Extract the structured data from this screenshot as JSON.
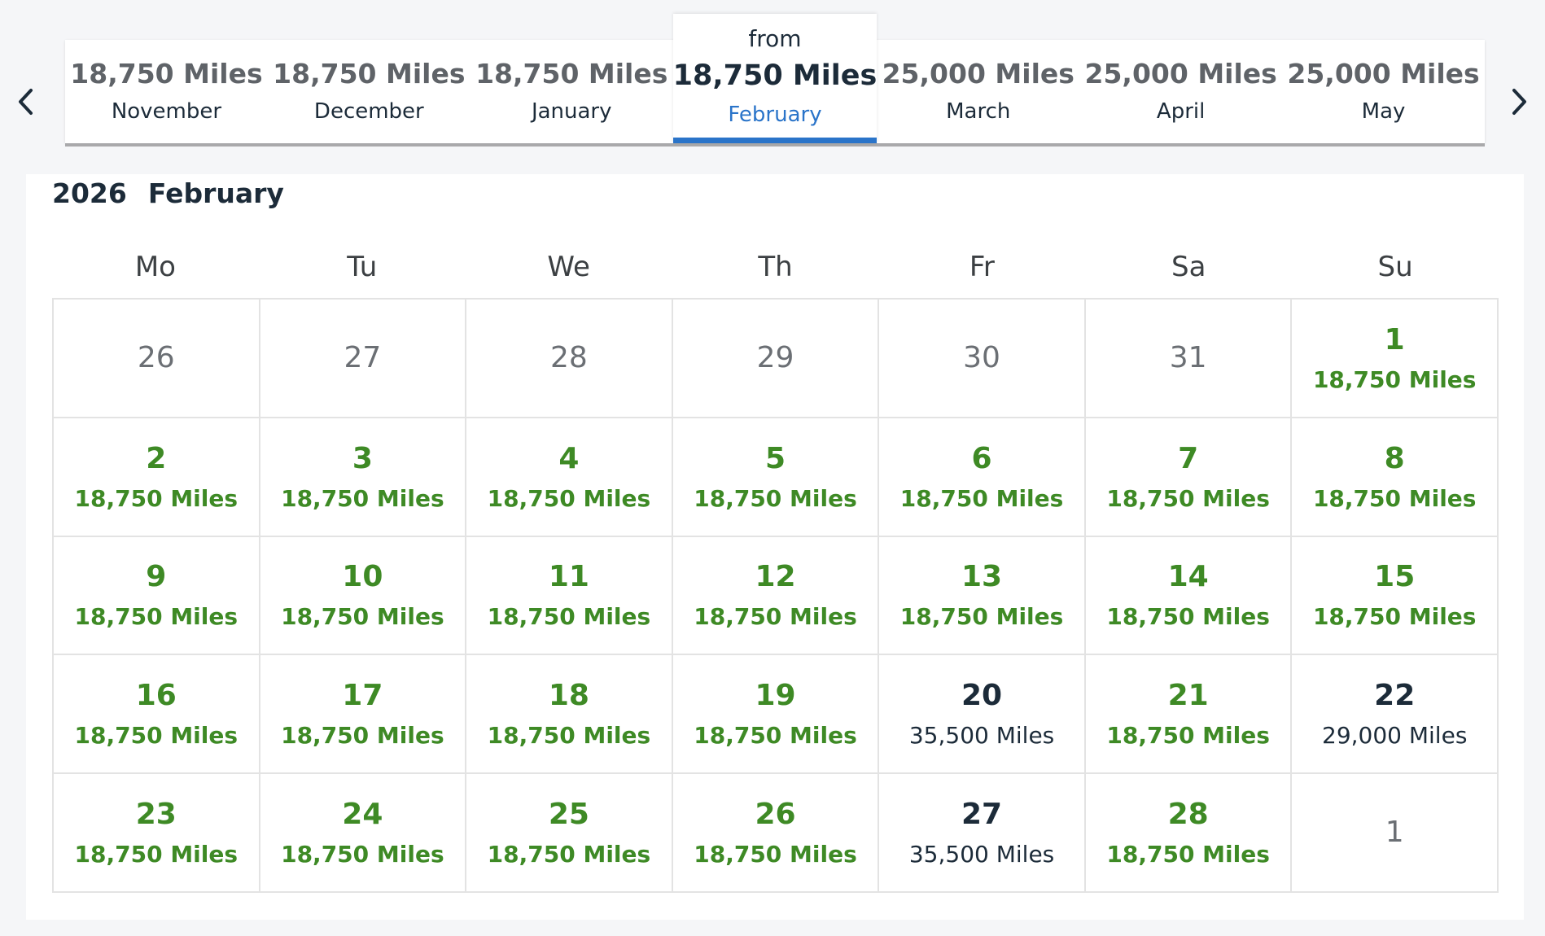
{
  "nav": {
    "prev_icon": "chevron-left-icon",
    "next_icon": "chevron-right-icon"
  },
  "months": [
    {
      "price": "18,750 Miles",
      "name": "November"
    },
    {
      "price": "18,750 Miles",
      "name": "December"
    },
    {
      "price": "18,750 Miles",
      "name": "January"
    },
    {
      "price": "18,750 Miles",
      "name": "February",
      "from": "from",
      "selected": true
    },
    {
      "price": "25,000 Miles",
      "name": "March"
    },
    {
      "price": "25,000 Miles",
      "name": "April"
    },
    {
      "price": "25,000 Miles",
      "name": "May"
    }
  ],
  "calendar": {
    "year": "2026",
    "month": "February",
    "weekdays": [
      "Mo",
      "Tu",
      "We",
      "Th",
      "Fr",
      "Sa",
      "Su"
    ],
    "weeks": [
      [
        {
          "day": "26",
          "miles": "",
          "state": "out"
        },
        {
          "day": "27",
          "miles": "",
          "state": "out"
        },
        {
          "day": "28",
          "miles": "",
          "state": "out"
        },
        {
          "day": "29",
          "miles": "",
          "state": "out"
        },
        {
          "day": "30",
          "miles": "",
          "state": "out"
        },
        {
          "day": "31",
          "miles": "",
          "state": "out"
        },
        {
          "day": "1",
          "miles": "18,750 Miles",
          "state": "low"
        }
      ],
      [
        {
          "day": "2",
          "miles": "18,750 Miles",
          "state": "low"
        },
        {
          "day": "3",
          "miles": "18,750 Miles",
          "state": "low"
        },
        {
          "day": "4",
          "miles": "18,750 Miles",
          "state": "low"
        },
        {
          "day": "5",
          "miles": "18,750 Miles",
          "state": "low"
        },
        {
          "day": "6",
          "miles": "18,750 Miles",
          "state": "low"
        },
        {
          "day": "7",
          "miles": "18,750 Miles",
          "state": "low"
        },
        {
          "day": "8",
          "miles": "18,750 Miles",
          "state": "low"
        }
      ],
      [
        {
          "day": "9",
          "miles": "18,750 Miles",
          "state": "low"
        },
        {
          "day": "10",
          "miles": "18,750 Miles",
          "state": "low"
        },
        {
          "day": "11",
          "miles": "18,750 Miles",
          "state": "low"
        },
        {
          "day": "12",
          "miles": "18,750 Miles",
          "state": "low"
        },
        {
          "day": "13",
          "miles": "18,750 Miles",
          "state": "low"
        },
        {
          "day": "14",
          "miles": "18,750 Miles",
          "state": "low"
        },
        {
          "day": "15",
          "miles": "18,750 Miles",
          "state": "low"
        }
      ],
      [
        {
          "day": "16",
          "miles": "18,750 Miles",
          "state": "low"
        },
        {
          "day": "17",
          "miles": "18,750 Miles",
          "state": "low"
        },
        {
          "day": "18",
          "miles": "18,750 Miles",
          "state": "low"
        },
        {
          "day": "19",
          "miles": "18,750 Miles",
          "state": "low"
        },
        {
          "day": "20",
          "miles": "35,500 Miles",
          "state": "high"
        },
        {
          "day": "21",
          "miles": "18,750 Miles",
          "state": "low"
        },
        {
          "day": "22",
          "miles": "29,000 Miles",
          "state": "high"
        }
      ],
      [
        {
          "day": "23",
          "miles": "18,750 Miles",
          "state": "low"
        },
        {
          "day": "24",
          "miles": "18,750 Miles",
          "state": "low"
        },
        {
          "day": "25",
          "miles": "18,750 Miles",
          "state": "low"
        },
        {
          "day": "26",
          "miles": "18,750 Miles",
          "state": "low"
        },
        {
          "day": "27",
          "miles": "35,500 Miles",
          "state": "high"
        },
        {
          "day": "28",
          "miles": "18,750 Miles",
          "state": "low"
        },
        {
          "day": "1",
          "miles": "",
          "state": "out"
        }
      ]
    ]
  },
  "colors": {
    "low_price": "#3e8a25",
    "selected_accent": "#2a74c9",
    "text_dark": "#1c2b39",
    "muted": "#6b6f74"
  }
}
